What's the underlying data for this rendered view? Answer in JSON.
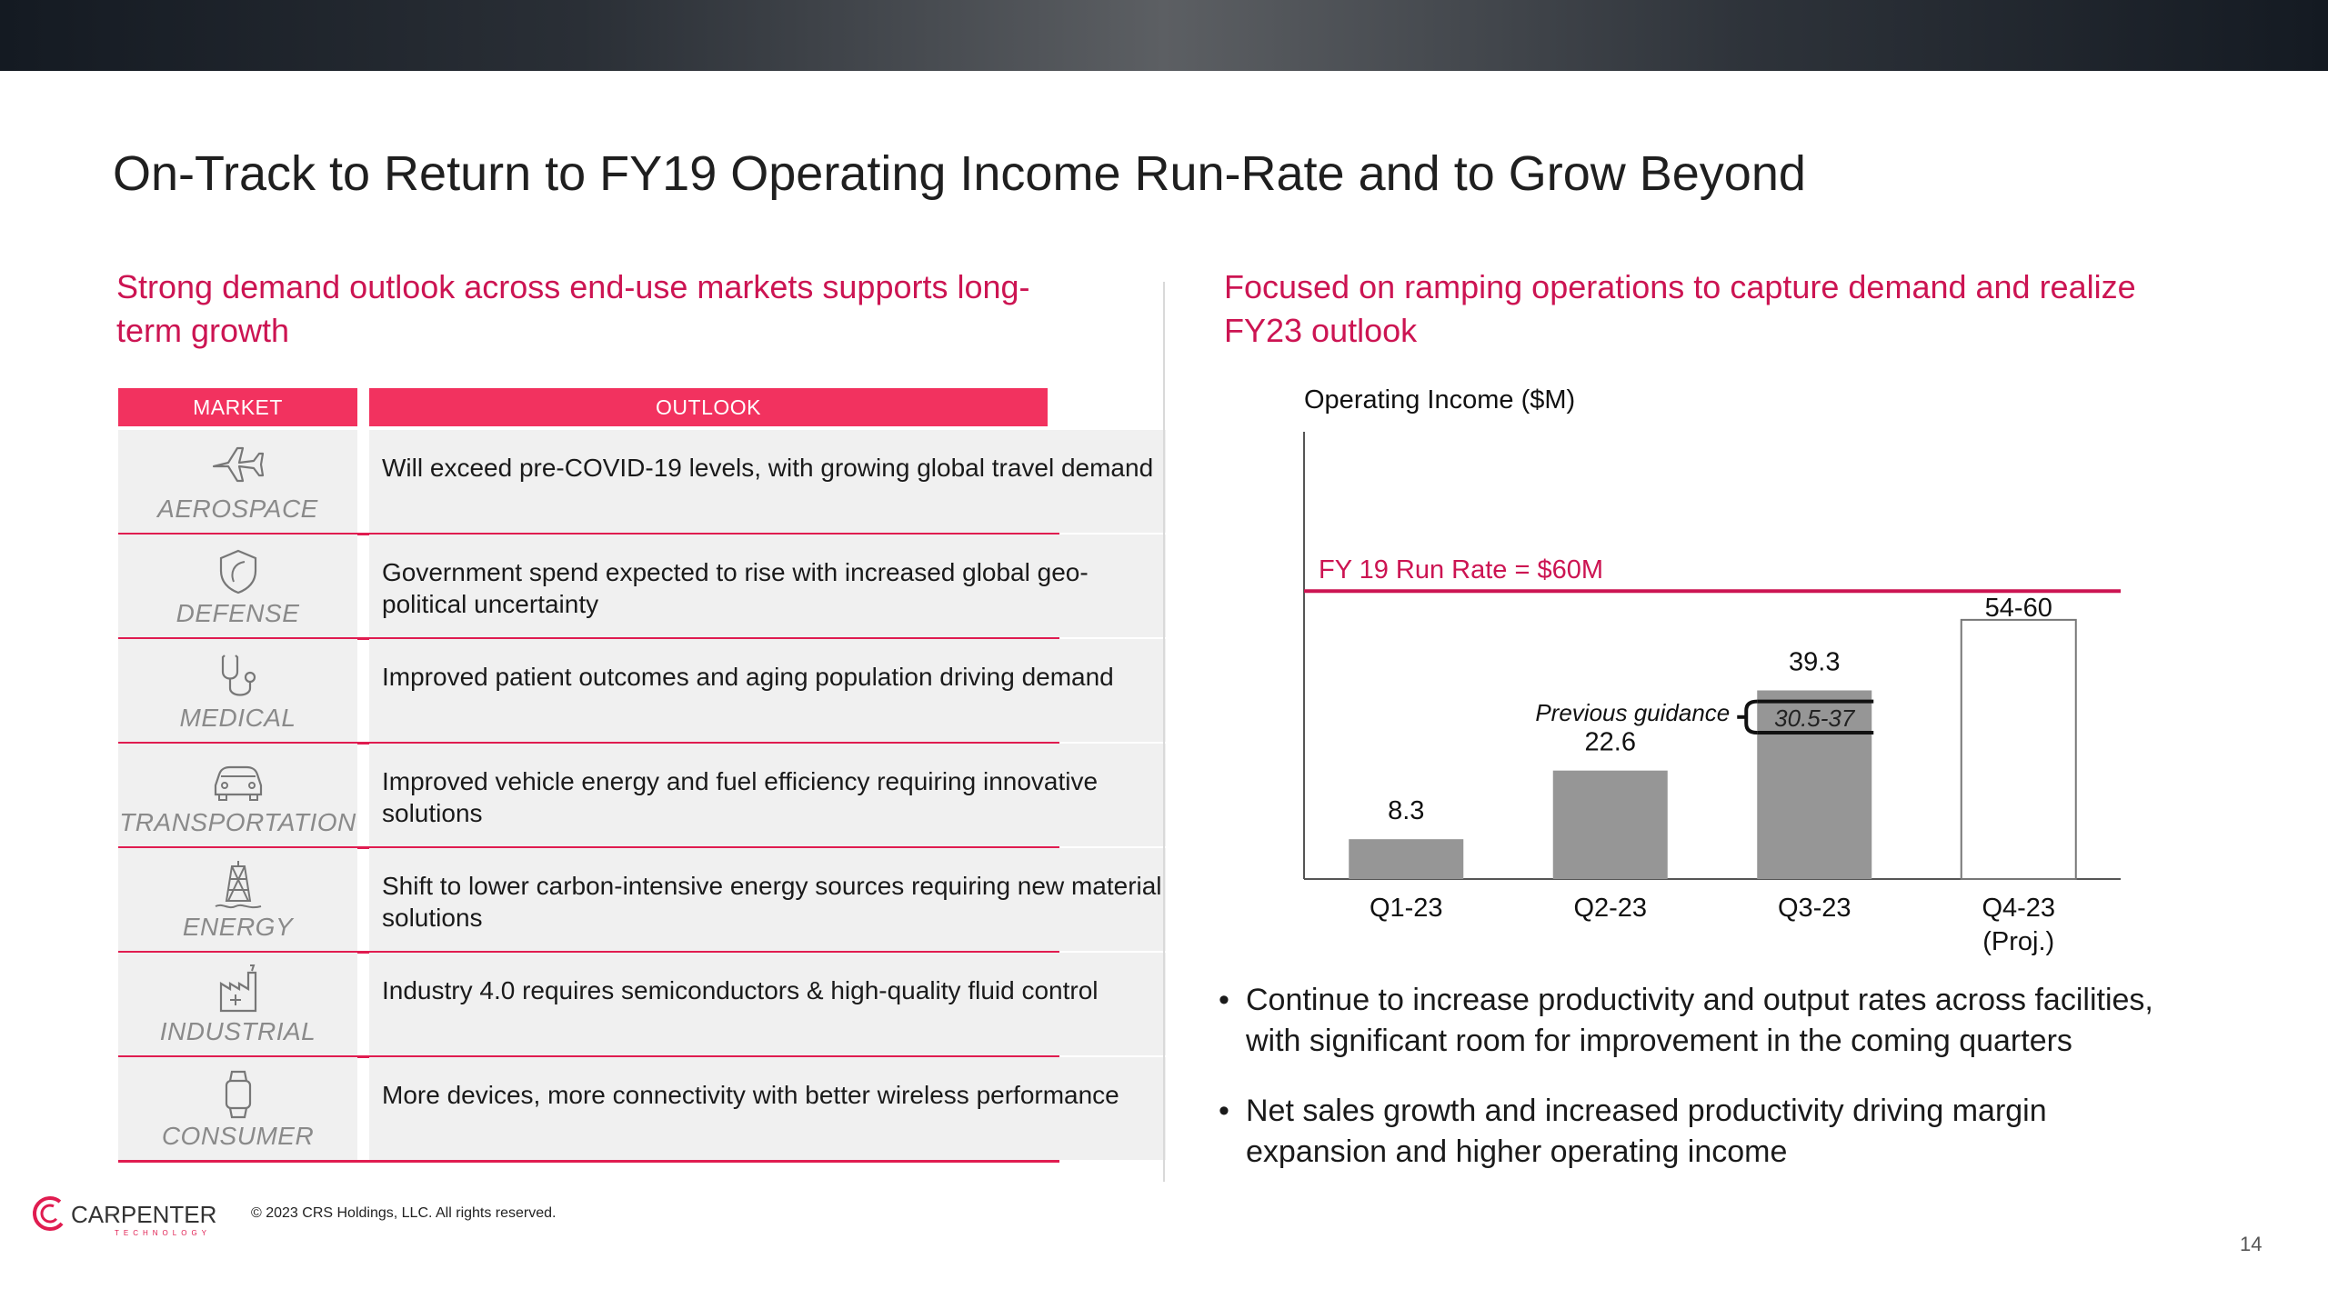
{
  "title": "On-Track to Return to FY19 Operating Income Run-Rate and to Grow Beyond",
  "left": {
    "subheading": "Strong demand outlook across end-use markets supports long-term growth",
    "subheading_line1": "Strong demand outlook across end-use markets supports long-",
    "subheading_line2": "term growth",
    "table": {
      "headers": [
        "MARKET",
        "OUTLOOK"
      ],
      "rows": [
        {
          "market": "AEROSPACE",
          "icon": "airplane-icon",
          "outlook": "Will exceed pre-COVID-19 levels, with growing global travel demand"
        },
        {
          "market": "DEFENSE",
          "icon": "shield-icon",
          "outlook": "Government spend expected to rise with increased global geo-political uncertainty"
        },
        {
          "market": "MEDICAL",
          "icon": "stethoscope-icon",
          "outlook": "Improved patient outcomes and aging population driving demand"
        },
        {
          "market": "TRANSPORTATION",
          "icon": "car-icon",
          "outlook": "Improved vehicle energy and fuel efficiency requiring innovative solutions"
        },
        {
          "market": "ENERGY",
          "icon": "oil-rig-icon",
          "outlook": "Shift to lower carbon-intensive energy sources requiring new material solutions"
        },
        {
          "market": "INDUSTRIAL",
          "icon": "factory-icon",
          "outlook": "Industry 4.0 requires semiconductors & high-quality fluid control"
        },
        {
          "market": "CONSUMER",
          "icon": "smartwatch-icon",
          "outlook": "More devices, more connectivity with better wireless performance"
        }
      ]
    }
  },
  "right": {
    "subheading_line1": "Focused on ramping operations to capture demand and realize",
    "subheading_line2": "FY23 outlook",
    "bullets": [
      {
        "line1": "Continue to increase productivity and output rates across facilities,",
        "line2": "with significant room for improvement in the coming quarters"
      },
      {
        "line1": "Net sales growth and increased productivity driving margin",
        "line2": "expansion and higher operating income"
      }
    ]
  },
  "chart_data": {
    "type": "bar",
    "title": "Operating Income ($M)",
    "categories": [
      "Q1-23",
      "Q2-23",
      "Q3-23",
      "Q4-23"
    ],
    "category_sublabels": [
      "",
      "",
      "",
      "(Proj.)"
    ],
    "values": [
      8.3,
      22.6,
      39.3,
      null
    ],
    "data_labels": [
      "8.3",
      "22.6",
      "39.3",
      "54-60"
    ],
    "projected_range": {
      "category": "Q4-23",
      "low": 54,
      "high": 60,
      "label": "54-60"
    },
    "reference_line": {
      "value": 60,
      "label": "FY 19 Run Rate = $60M",
      "color": "#cc1452"
    },
    "previous_guidance": {
      "category": "Q3-23",
      "low": 30.5,
      "high": 37,
      "label": "30.5-37",
      "caption": "Previous guidance"
    },
    "ylim": [
      0,
      70
    ],
    "bar_color": "#969696",
    "grid": false
  },
  "footer": {
    "copyright": "© 2023 CRS Holdings, LLC. All rights reserved.",
    "page_number": "14",
    "logo_text": "CARPENTER",
    "logo_subtext": "TECHNOLOGY"
  },
  "colors": {
    "accent": "#cc1452",
    "header_fill": "#f2325f",
    "row_fill": "#f0f0f0"
  }
}
